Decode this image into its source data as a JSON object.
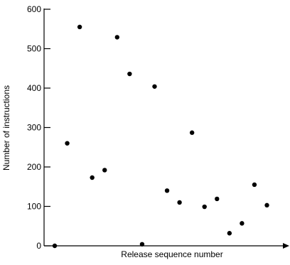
{
  "chart_data": {
    "type": "scatter",
    "title": "",
    "xlabel": "Release sequence number",
    "ylabel": "Number of instructions",
    "ylim": [
      0,
      600
    ],
    "yticks": [
      0,
      100,
      200,
      300,
      400,
      500,
      600
    ],
    "ytick_labels": [
      "0",
      "100",
      "200",
      "300",
      "400",
      "500",
      "600"
    ],
    "x_ticks_shown": false,
    "grid": false,
    "series": [
      {
        "x": [
          1,
          2,
          3,
          4,
          5,
          6,
          7,
          8,
          9,
          10,
          11,
          12,
          13,
          14,
          15,
          16,
          17,
          18
        ],
        "y": [
          0,
          260,
          555,
          173,
          192,
          529,
          436,
          4,
          404,
          140,
          110,
          287,
          99,
          119,
          32,
          57,
          155,
          103
        ]
      }
    ],
    "marker_color": "#000000",
    "axis_color": "#000000"
  }
}
